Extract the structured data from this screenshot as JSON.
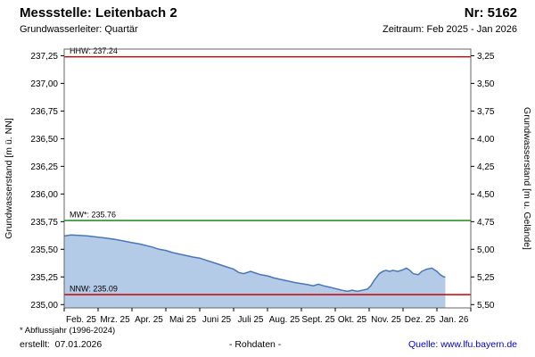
{
  "header": {
    "title": "Messstelle: Leitenbach 2",
    "station_nr": "Nr: 5162",
    "aquifer": "Grundwasserleiter: Quartär",
    "period": "Zeitraum: Feb 2025 - Jan 2026"
  },
  "footer": {
    "footnote": "* Abflussjahr (1996-2024)",
    "created": "erstellt:  07.01.2026",
    "data_type": "- Rohdaten -",
    "source": "Quelle: www.lfu.bayern.de",
    "source_color": "#0000cc"
  },
  "chart_data": {
    "type": "area",
    "ylabel_left": "Grundwasserstand [m ü. NN]",
    "ylabel_right": "Grundwasserstand [m u. Gelände]",
    "ylim_left": [
      234.97,
      237.31
    ],
    "ylim_right": [
      3.19,
      5.53
    ],
    "right_axis_inverted": true,
    "x_range": [
      0,
      12
    ],
    "x_tick_labels": [
      "Feb. 25",
      "Mrz. 25",
      "Apr. 25",
      "Mai 25",
      "Juni 25",
      "Juli 25",
      "Aug. 25",
      "Sept. 25",
      "Okt. 25",
      "Nov. 25",
      "Dez. 25",
      "Jan. 26"
    ],
    "left_ticks": [
      {
        "value": 235.0,
        "label": "235,00"
      },
      {
        "value": 235.25,
        "label": "235,25"
      },
      {
        "value": 235.5,
        "label": "235,50"
      },
      {
        "value": 235.75,
        "label": "235,75"
      },
      {
        "value": 236.0,
        "label": "236,00"
      },
      {
        "value": 236.25,
        "label": "236,25"
      },
      {
        "value": 236.5,
        "label": "236,50"
      },
      {
        "value": 236.75,
        "label": "236,75"
      },
      {
        "value": 237.0,
        "label": "237,00"
      },
      {
        "value": 237.25,
        "label": "237,25"
      }
    ],
    "right_ticks": [
      {
        "value": 3.25,
        "label": "3,25"
      },
      {
        "value": 3.5,
        "label": "3,50"
      },
      {
        "value": 3.75,
        "label": "3,75"
      },
      {
        "value": 4.0,
        "label": "4,00"
      },
      {
        "value": 4.25,
        "label": "4,25"
      },
      {
        "value": 4.5,
        "label": "4,50"
      },
      {
        "value": 4.75,
        "label": "4,75"
      },
      {
        "value": 5.0,
        "label": "5,00"
      },
      {
        "value": 5.25,
        "label": "5,25"
      },
      {
        "value": 5.5,
        "label": "5,50"
      }
    ],
    "reference_lines": [
      {
        "name": "HHW",
        "value": 237.24,
        "label": "HHW: 237.24",
        "color": "#cc0000"
      },
      {
        "name": "MW",
        "value": 235.76,
        "label": "MW*: 235.76",
        "color": "#008000"
      },
      {
        "name": "NNW",
        "value": 235.09,
        "label": "NNW: 235.09",
        "color": "#cc0000"
      }
    ],
    "series": [
      {
        "name": "Grundwasserstand Rohdaten",
        "line_color": "#4a76b8",
        "fill_color": "#b4cbe8",
        "points": [
          [
            0,
            235.62
          ],
          [
            0.2,
            235.63
          ],
          [
            0.45,
            235.625
          ],
          [
            0.7,
            235.62
          ],
          [
            1,
            235.61
          ],
          [
            1.25,
            235.6
          ],
          [
            1.5,
            235.59
          ],
          [
            1.75,
            235.575
          ],
          [
            2,
            235.56
          ],
          [
            2.2,
            235.55
          ],
          [
            2.4,
            235.535
          ],
          [
            2.6,
            235.52
          ],
          [
            2.8,
            235.5
          ],
          [
            3,
            235.49
          ],
          [
            3.2,
            235.47
          ],
          [
            3.5,
            235.45
          ],
          [
            3.8,
            235.43
          ],
          [
            4,
            235.42
          ],
          [
            4.2,
            235.4
          ],
          [
            4.5,
            235.37
          ],
          [
            4.8,
            235.34
          ],
          [
            5,
            235.32
          ],
          [
            5.15,
            235.29
          ],
          [
            5.3,
            235.28
          ],
          [
            5.5,
            235.3
          ],
          [
            5.65,
            235.285
          ],
          [
            5.8,
            235.27
          ],
          [
            6,
            235.26
          ],
          [
            6.2,
            235.24
          ],
          [
            6.5,
            235.22
          ],
          [
            6.8,
            235.2
          ],
          [
            7,
            235.19
          ],
          [
            7.2,
            235.18
          ],
          [
            7.35,
            235.17
          ],
          [
            7.5,
            235.185
          ],
          [
            7.65,
            235.17
          ],
          [
            7.8,
            235.16
          ],
          [
            8,
            235.145
          ],
          [
            8.2,
            235.13
          ],
          [
            8.35,
            235.12
          ],
          [
            8.5,
            235.13
          ],
          [
            8.65,
            235.12
          ],
          [
            8.8,
            235.13
          ],
          [
            8.95,
            235.14
          ],
          [
            9.05,
            235.17
          ],
          [
            9.15,
            235.22
          ],
          [
            9.3,
            235.28
          ],
          [
            9.4,
            235.3
          ],
          [
            9.5,
            235.31
          ],
          [
            9.6,
            235.3
          ],
          [
            9.7,
            235.31
          ],
          [
            9.85,
            235.3
          ],
          [
            10,
            235.315
          ],
          [
            10.1,
            235.33
          ],
          [
            10.2,
            235.31
          ],
          [
            10.3,
            235.28
          ],
          [
            10.45,
            235.27
          ],
          [
            10.55,
            235.3
          ],
          [
            10.7,
            235.32
          ],
          [
            10.85,
            235.33
          ],
          [
            11,
            235.3
          ],
          [
            11.1,
            235.27
          ],
          [
            11.2,
            235.25
          ],
          [
            11.25,
            235.25
          ]
        ]
      }
    ],
    "colors": {
      "plot_border": "#666666",
      "tick": "#000000"
    }
  }
}
